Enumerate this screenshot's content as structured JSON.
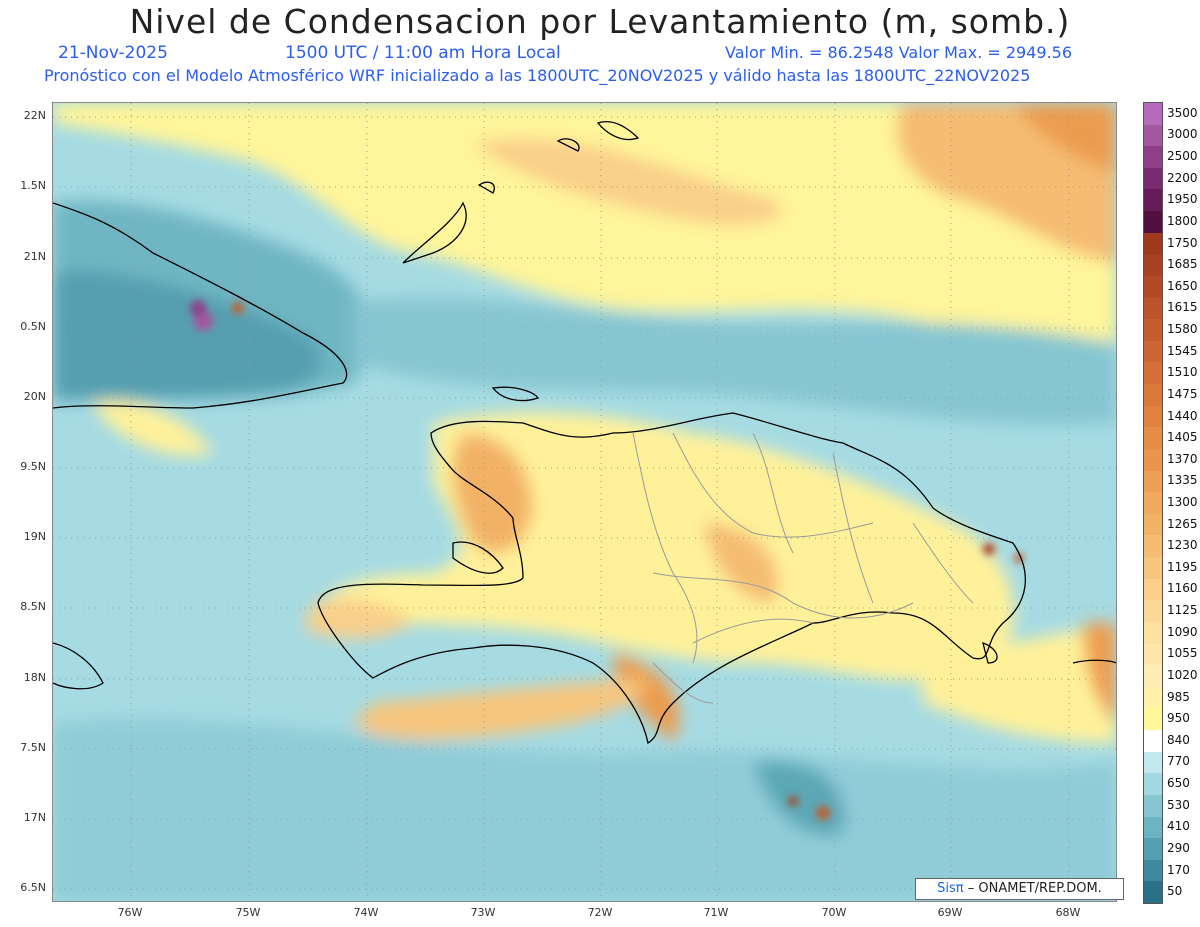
{
  "title": "Nivel de Condensacion por Levantamiento (m, somb.)",
  "date": "21-Nov-2025",
  "time": "1500 UTC / 11:00 am Hora Local",
  "min_max": "Valor Min. = 86.2548   Valor Max. = 2949.56",
  "forecast_line": "Pronóstico con el Modelo Atmosférico WRF inicializado a las 1800UTC_20NOV2025 y válido hasta las   1800UTC_22NOV2025",
  "credit": {
    "sis": "Sisπ",
    "rest": "– ONAMET/REP.DOM."
  },
  "lat_labels": [
    "22N",
    "1.5N",
    "21N",
    "0.5N",
    "20N",
    "9.5N",
    "19N",
    "8.5N",
    "18N",
    "7.5N",
    "17N",
    "6.5N"
  ],
  "lon_labels": [
    "76W",
    "75W",
    "74W",
    "73W",
    "72W",
    "71W",
    "70W",
    "69W",
    "68W"
  ],
  "colorbar": {
    "labels": [
      "3500",
      "3000",
      "2500",
      "2200",
      "1950",
      "1800",
      "1750",
      "1685",
      "1650",
      "1615",
      "1580",
      "1545",
      "1510",
      "1475",
      "1440",
      "1405",
      "1370",
      "1335",
      "1300",
      "1265",
      "1230",
      "1195",
      "1160",
      "1125",
      "1090",
      "1055",
      "1020",
      "985",
      "950",
      "840",
      "770",
      "650",
      "530",
      "410",
      "290",
      "170",
      "50"
    ],
    "colors": [
      "#b56bbb",
      "#a3579f",
      "#8e3f87",
      "#7a2c70",
      "#641b58",
      "#511040",
      "#a0381c",
      "#a94222",
      "#b24a26",
      "#bb542a",
      "#c35d2e",
      "#cc6632",
      "#d46f36",
      "#da783a",
      "#e0823f",
      "#e58c45",
      "#e9964c",
      "#ed9f54",
      "#f0a95d",
      "#f2b266",
      "#f5bc72",
      "#f7c67e",
      "#f9cf8a",
      "#fad895",
      "#fce0a0",
      "#fde7aa",
      "#fdedb4",
      "#fff2a8",
      "#fff79a",
      "#ffffff",
      "#c2e9ee",
      "#a3d8e2",
      "#86c6d1",
      "#6cb4c1",
      "#549fb0",
      "#3d889e",
      "#2a7188"
    ]
  },
  "colors": {
    "accent": "#2a5df0",
    "warm": "#f2a65a",
    "cool": "#7cc3cf",
    "land_outline": "#000000",
    "province_lines": "#9a9a9a"
  }
}
